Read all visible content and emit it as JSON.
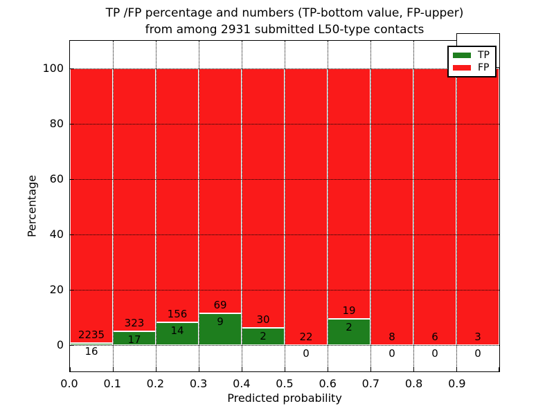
{
  "title": {
    "line1": "TP /FP percentage and numbers (TP-bottom value, FP-upper)",
    "line2": "from among 2931 submitted L50-type contacts"
  },
  "y_axis": {
    "label": "Percentage",
    "tick_labels": [
      "0",
      "20",
      "40",
      "60",
      "80",
      "100"
    ],
    "tick_values": [
      0,
      20,
      40,
      60,
      80,
      100
    ]
  },
  "x_axis": {
    "label": "Predicted probability",
    "tick_labels": [
      "0.0",
      "0.1",
      "0.2",
      "0.3",
      "0.4",
      "0.5",
      "0.6",
      "0.7",
      "0.8",
      "0.9"
    ],
    "tick_values": [
      0,
      0.1,
      0.2,
      0.3,
      0.4,
      0.5,
      0.6,
      0.7,
      0.8,
      0.9
    ]
  },
  "legend": {
    "position": "upper right",
    "items": [
      {
        "label": "TP",
        "color": "#1e7e1e"
      },
      {
        "label": "FP",
        "color": "#fa1a1a"
      }
    ]
  },
  "colors": {
    "tp": "#1e7e1e",
    "fp": "#fa1a1a",
    "grid": "#000000",
    "bar_edge": "#ffffff",
    "background": "#ffffff"
  },
  "chart_data": {
    "type": "bar",
    "subtype": "stacked-percentage",
    "title": "TP /FP percentage and numbers (TP-bottom value, FP-upper) from among 2931 submitted L50-type contacts",
    "xlabel": "Predicted probability",
    "ylabel": "Percentage",
    "total_contacts": 2931,
    "bins": [
      "0.0-0.1",
      "0.1-0.2",
      "0.2-0.3",
      "0.3-0.4",
      "0.4-0.5",
      "0.5-0.6",
      "0.6-0.7",
      "0.7-0.8",
      "0.8-0.9",
      "0.9-1.0"
    ],
    "series": [
      {
        "name": "TP",
        "counts": [
          16,
          17,
          14,
          9,
          2,
          0,
          2,
          0,
          0,
          0
        ],
        "color": "#1e7e1e"
      },
      {
        "name": "FP",
        "counts": [
          2235,
          323,
          156,
          69,
          30,
          22,
          19,
          8,
          6,
          3
        ],
        "color": "#fa1a1a"
      }
    ],
    "tp_percent_of_bin": [
      0.7,
      5.0,
      8.2,
      11.5,
      6.2,
      0.0,
      9.5,
      0.0,
      0.0,
      0.0
    ],
    "ylim": [
      -10,
      110
    ],
    "xlim": [
      0,
      1
    ],
    "grid": true,
    "grid_style": "dotted",
    "legend_position": "upper right"
  }
}
